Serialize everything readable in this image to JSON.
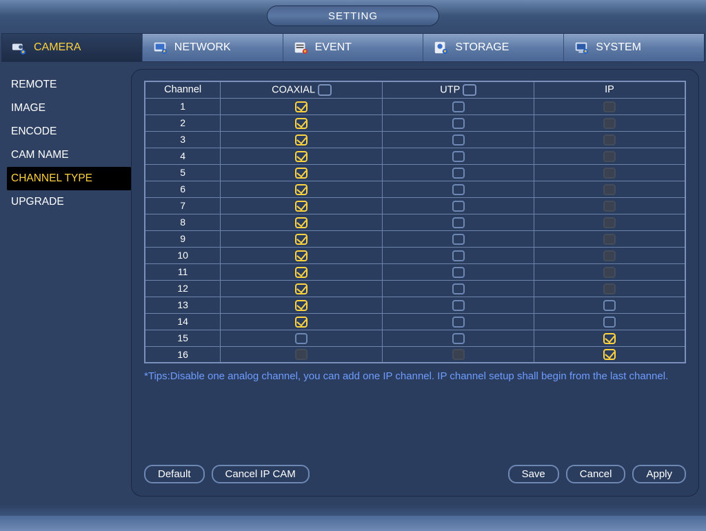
{
  "title": "SETTING",
  "tabs": [
    {
      "label": "CAMERA",
      "active": true
    },
    {
      "label": "NETWORK",
      "active": false
    },
    {
      "label": "EVENT",
      "active": false
    },
    {
      "label": "STORAGE",
      "active": false
    },
    {
      "label": "SYSTEM",
      "active": false
    }
  ],
  "sidebar": [
    {
      "label": "REMOTE",
      "active": false
    },
    {
      "label": "IMAGE",
      "active": false
    },
    {
      "label": "ENCODE",
      "active": false
    },
    {
      "label": "CAM NAME",
      "active": false
    },
    {
      "label": "CHANNEL TYPE",
      "active": true
    },
    {
      "label": "UPGRADE",
      "active": false
    }
  ],
  "table": {
    "columns": {
      "ch": "Channel",
      "a": "COAXIAL",
      "b": "UTP",
      "c": "IP"
    },
    "header_check": {
      "a": false,
      "b": false
    },
    "rows": [
      {
        "ch": "1",
        "a": "on",
        "b": "off",
        "c": "disabled"
      },
      {
        "ch": "2",
        "a": "on",
        "b": "off",
        "c": "disabled"
      },
      {
        "ch": "3",
        "a": "on",
        "b": "off",
        "c": "disabled"
      },
      {
        "ch": "4",
        "a": "on",
        "b": "off",
        "c": "disabled"
      },
      {
        "ch": "5",
        "a": "on",
        "b": "off",
        "c": "disabled"
      },
      {
        "ch": "6",
        "a": "on",
        "b": "off",
        "c": "disabled"
      },
      {
        "ch": "7",
        "a": "on",
        "b": "off",
        "c": "disabled"
      },
      {
        "ch": "8",
        "a": "on",
        "b": "off",
        "c": "disabled"
      },
      {
        "ch": "9",
        "a": "on",
        "b": "off",
        "c": "disabled"
      },
      {
        "ch": "10",
        "a": "on",
        "b": "off",
        "c": "disabled"
      },
      {
        "ch": "11",
        "a": "on",
        "b": "off",
        "c": "disabled"
      },
      {
        "ch": "12",
        "a": "on",
        "b": "off",
        "c": "disabled"
      },
      {
        "ch": "13",
        "a": "on",
        "b": "off",
        "c": "off"
      },
      {
        "ch": "14",
        "a": "on",
        "b": "off",
        "c": "off"
      },
      {
        "ch": "15",
        "a": "off",
        "b": "off",
        "c": "on"
      },
      {
        "ch": "16",
        "a": "disabled",
        "b": "disabled",
        "c": "on"
      }
    ]
  },
  "tips": "*Tips:Disable one analog channel, you can add one IP channel. IP channel setup shall begin from the last channel.",
  "buttons": {
    "default": "Default",
    "cancelip": "Cancel IP CAM",
    "save": "Save",
    "cancel": "Cancel",
    "apply": "Apply"
  },
  "colors": {
    "accent": "#ffd23f",
    "link": "#6e9cff"
  }
}
